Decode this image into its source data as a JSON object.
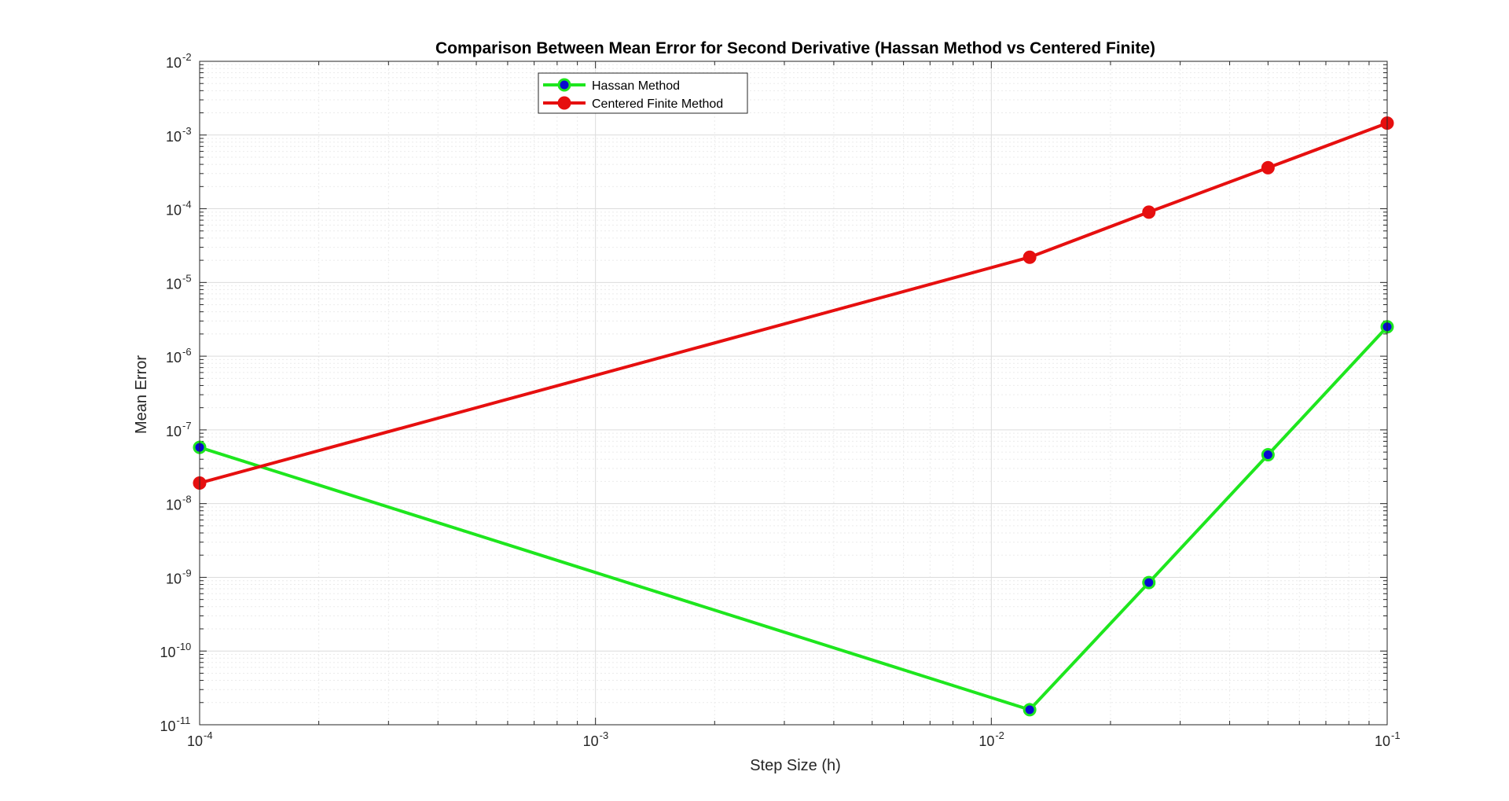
{
  "chart_data": {
    "type": "line",
    "title": "Comparison Between Mean Error for Second Derivative (Hassan Method vs Centered Finite)",
    "xlabel": "Step Size (h)",
    "ylabel": "Mean Error",
    "xscale": "log",
    "yscale": "log",
    "xlim": [
      0.0001,
      0.1
    ],
    "ylim": [
      1e-11,
      0.01
    ],
    "grid": true,
    "minor_grid": true,
    "legend_location": "top-left",
    "x_ticks": [
      {
        "value": 0.0001,
        "base": "10",
        "exp": "-4"
      },
      {
        "value": 0.001,
        "base": "10",
        "exp": "-3"
      },
      {
        "value": 0.01,
        "base": "10",
        "exp": "-2"
      },
      {
        "value": 0.1,
        "base": "10",
        "exp": "-1"
      }
    ],
    "y_ticks": [
      {
        "value": 1e-11,
        "base": "10",
        "exp": "-11"
      },
      {
        "value": 1e-10,
        "base": "10",
        "exp": "-10"
      },
      {
        "value": 1e-09,
        "base": "10",
        "exp": "-9"
      },
      {
        "value": 1e-08,
        "base": "10",
        "exp": "-8"
      },
      {
        "value": 1e-07,
        "base": "10",
        "exp": "-7"
      },
      {
        "value": 1e-06,
        "base": "10",
        "exp": "-6"
      },
      {
        "value": 1e-05,
        "base": "10",
        "exp": "-5"
      },
      {
        "value": 0.0001,
        "base": "10",
        "exp": "-4"
      },
      {
        "value": 0.001,
        "base": "10",
        "exp": "-3"
      },
      {
        "value": 0.01,
        "base": "10",
        "exp": "-2"
      }
    ],
    "series": [
      {
        "name": "Hassan Method",
        "color": "#1EE61E",
        "marker_face": "#0A0AD2",
        "x": [
          0.0001,
          0.0125,
          0.025,
          0.05,
          0.1
        ],
        "y": [
          5.8e-08,
          1.6e-11,
          8.5e-10,
          4.6e-08,
          2.5e-06
        ]
      },
      {
        "name": "Centered Finite Method",
        "color": "#E60F0F",
        "marker_face": "#E60F0F",
        "x": [
          0.0001,
          0.0125,
          0.025,
          0.05,
          0.1
        ],
        "y": [
          1.9e-08,
          2.2e-05,
          9e-05,
          0.00036,
          0.00145
        ]
      }
    ]
  }
}
